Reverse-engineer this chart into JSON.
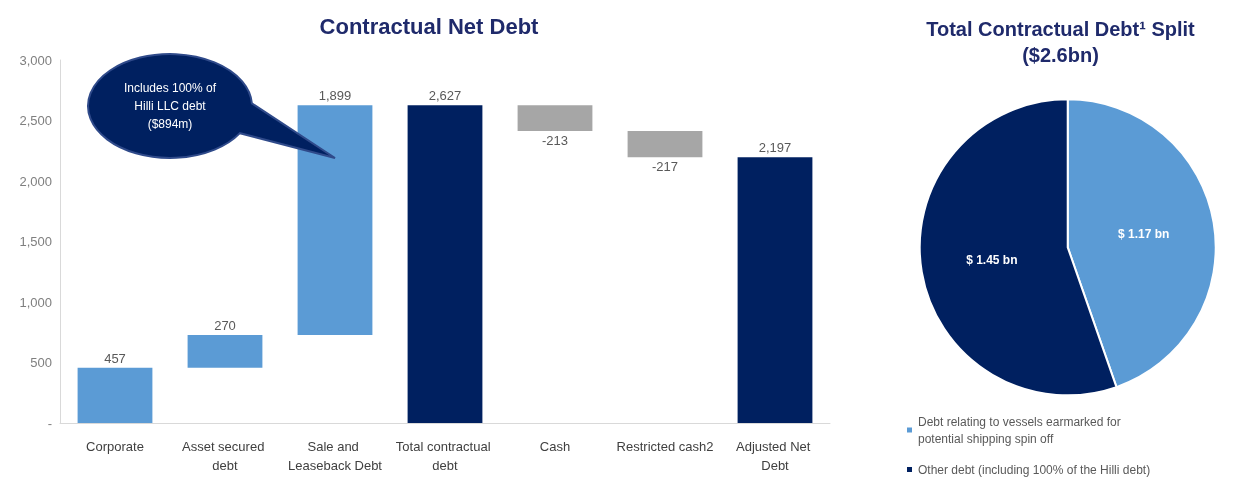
{
  "chart_data": [
    {
      "type": "bar",
      "title": "Contractual Net Debt",
      "categories": [
        "Corporate",
        "Asset secured debt",
        "Sale and Leaseback Debt",
        "Total contractual debt",
        "Cash",
        "Restricted cash2",
        "Adjusted Net Debt"
      ],
      "values": [
        457,
        270,
        1899,
        2627,
        -213,
        -217,
        2197
      ],
      "base": [
        0,
        457,
        727,
        0,
        2627,
        2414,
        0
      ],
      "colors": [
        "#5b9bd5",
        "#5b9bd5",
        "#5b9bd5",
        "#002060",
        "#a6a6a6",
        "#a6a6a6",
        "#002060"
      ],
      "value_labels": [
        "457",
        "270",
        "1,899",
        "2,627",
        "-213",
        "-217",
        "2,197"
      ],
      "ylim": [
        0,
        3000
      ],
      "yticks": [
        {
          "value": 0,
          "label": "-"
        },
        500,
        {
          "value": 1000,
          "label": "1,000"
        },
        {
          "value": 1500,
          "label": "1,500"
        },
        {
          "value": 2000,
          "label": "2,000"
        },
        {
          "value": 2500,
          "label": "2,500"
        },
        {
          "value": 3000,
          "label": "3,000"
        }
      ],
      "annotations": [
        "Includes 100% of Hilli LLC debt ($894m)"
      ],
      "grid": false,
      "legend": false
    },
    {
      "type": "pie",
      "title": "Total Contractual Debt¹ Split",
      "subtitle": "($2.6bn)",
      "categories": [
        "Debt relating to vessels earmarked for potential shipping spin off",
        "Other debt (including 100% of the Hilli debt)"
      ],
      "values": [
        1.17,
        1.45
      ],
      "colors": [
        "#5b9bd5",
        "#002060"
      ],
      "value_labels": [
        "$ 1.17 bn",
        "$ 1.45 bn"
      ],
      "legend": "bottom"
    }
  ]
}
